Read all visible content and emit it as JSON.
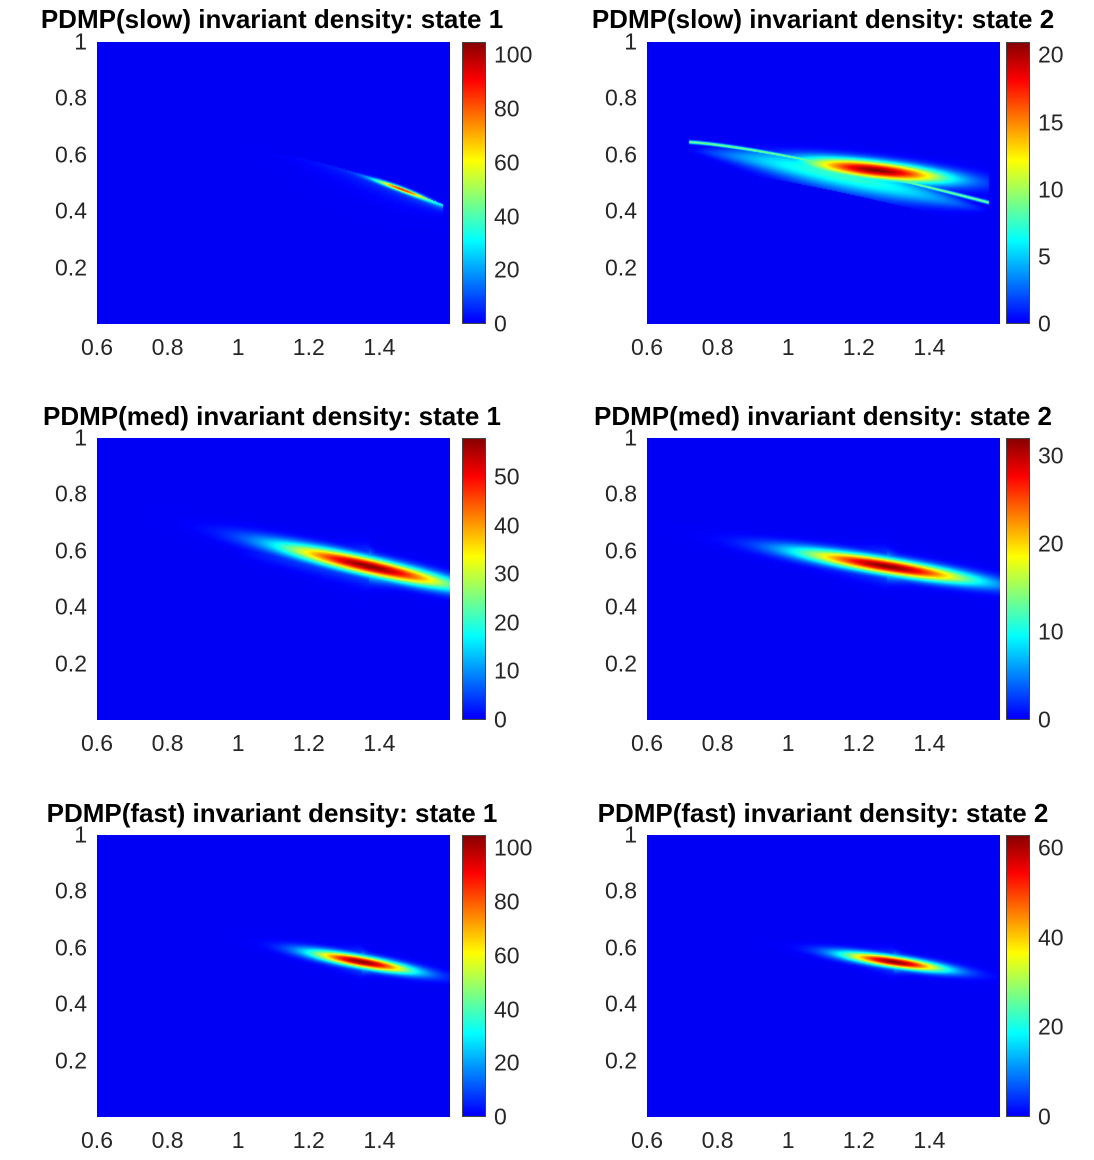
{
  "chart_data": [
    {
      "type": "heatmap",
      "title": "PDMP(slow) invariant density: state 1",
      "xticks": [
        "0.6",
        "0.8",
        "1",
        "1.2",
        "1.4"
      ],
      "yticks": [
        "1",
        "0.8",
        "0.6",
        "0.4",
        "0.2"
      ],
      "xlim": [
        0.6,
        1.6
      ],
      "ylim": [
        0,
        1
      ],
      "colorbar": {
        "ticks": [
          "100",
          "80",
          "60",
          "40",
          "20",
          "0"
        ],
        "clim": [
          0,
          105
        ]
      },
      "colormap": "jet",
      "mode": "edge",
      "ridge": {
        "x_start": 0.97,
        "y_start": 0.62,
        "x_end": 1.58,
        "y_end": 0.42,
        "peak_x": 1.46,
        "peak": 105
      }
    },
    {
      "type": "heatmap",
      "title": "PDMP(slow) invariant density: state 2",
      "xticks": [
        "0.6",
        "0.8",
        "1",
        "1.2",
        "1.4"
      ],
      "yticks": [
        "1",
        "0.8",
        "0.6",
        "0.4",
        "0.2"
      ],
      "xlim": [
        0.6,
        1.6
      ],
      "ylim": [
        0,
        1
      ],
      "colorbar": {
        "ticks": [
          "20",
          "15",
          "10",
          "5",
          "0"
        ],
        "clim": [
          0,
          21
        ]
      },
      "colormap": "jet",
      "mode": "band",
      "ridge": {
        "x_start": 0.72,
        "y_start": 0.645,
        "x_end": 1.57,
        "y_end": 0.43,
        "peak_x": 1.25,
        "peak_y": 0.545,
        "peak": 21
      }
    },
    {
      "type": "heatmap",
      "title": "PDMP(med) invariant density: state 1",
      "xticks": [
        "0.6",
        "0.8",
        "1",
        "1.2",
        "1.4"
      ],
      "yticks": [
        "1",
        "0.8",
        "0.6",
        "0.4",
        "0.2"
      ],
      "xlim": [
        0.6,
        1.6
      ],
      "ylim": [
        0,
        1
      ],
      "colorbar": {
        "ticks": [
          "50",
          "40",
          "30",
          "20",
          "10",
          "0"
        ],
        "clim": [
          0,
          58
        ]
      },
      "colormap": "jet",
      "mode": "blob",
      "blob": {
        "cx": 1.37,
        "cy": 0.545,
        "sx": 0.17,
        "sy": 0.022,
        "slope": -0.28,
        "peak": 58,
        "tail_x": 0.98,
        "tail_y": 0.6,
        "head_x": 1.53,
        "head_y": 0.46
      }
    },
    {
      "type": "heatmap",
      "title": "PDMP(med) invariant density: state 2",
      "xticks": [
        "0.6",
        "0.8",
        "1",
        "1.2",
        "1.4"
      ],
      "yticks": [
        "1",
        "0.8",
        "0.6",
        "0.4",
        "0.2"
      ],
      "xlim": [
        0.6,
        1.6
      ],
      "ylim": [
        0,
        1
      ],
      "colorbar": {
        "ticks": [
          "30",
          "20",
          "10",
          "0"
        ],
        "clim": [
          0,
          32
        ]
      },
      "colormap": "jet",
      "mode": "blob",
      "blob": {
        "cx": 1.28,
        "cy": 0.545,
        "sx": 0.17,
        "sy": 0.02,
        "slope": -0.2,
        "peak": 32,
        "tail_x": 0.9,
        "tail_y": 0.6,
        "head_x": 1.5,
        "head_y": 0.48
      }
    },
    {
      "type": "heatmap",
      "title": "PDMP(fast) invariant density: state 1",
      "xticks": [
        "0.6",
        "0.8",
        "1",
        "1.2",
        "1.4"
      ],
      "yticks": [
        "1",
        "0.8",
        "0.6",
        "0.4",
        "0.2"
      ],
      "xlim": [
        0.6,
        1.6
      ],
      "ylim": [
        0,
        1
      ],
      "colorbar": {
        "ticks": [
          "100",
          "80",
          "60",
          "40",
          "20",
          "0"
        ],
        "clim": [
          0,
          105
        ]
      },
      "colormap": "jet",
      "mode": "blob",
      "blob": {
        "cx": 1.35,
        "cy": 0.55,
        "sx": 0.1,
        "sy": 0.015,
        "slope": -0.22,
        "peak": 105,
        "tail_x": 1.12,
        "tail_y": 0.59,
        "head_x": 1.48,
        "head_y": 0.51
      }
    },
    {
      "type": "heatmap",
      "title": "PDMP(fast) invariant density: state 2",
      "xticks": [
        "0.6",
        "0.8",
        "1",
        "1.2",
        "1.4"
      ],
      "yticks": [
        "1",
        "0.8",
        "0.6",
        "0.4",
        "0.2"
      ],
      "xlim": [
        0.6,
        1.6
      ],
      "ylim": [
        0,
        1
      ],
      "colorbar": {
        "ticks": [
          "60",
          "40",
          "20",
          "0"
        ],
        "clim": [
          0,
          63
        ]
      },
      "colormap": "jet",
      "mode": "blob",
      "blob": {
        "cx": 1.3,
        "cy": 0.55,
        "sx": 0.1,
        "sy": 0.014,
        "slope": -0.18,
        "peak": 63,
        "tail_x": 1.05,
        "tail_y": 0.59,
        "head_x": 1.46,
        "head_y": 0.51
      }
    }
  ]
}
